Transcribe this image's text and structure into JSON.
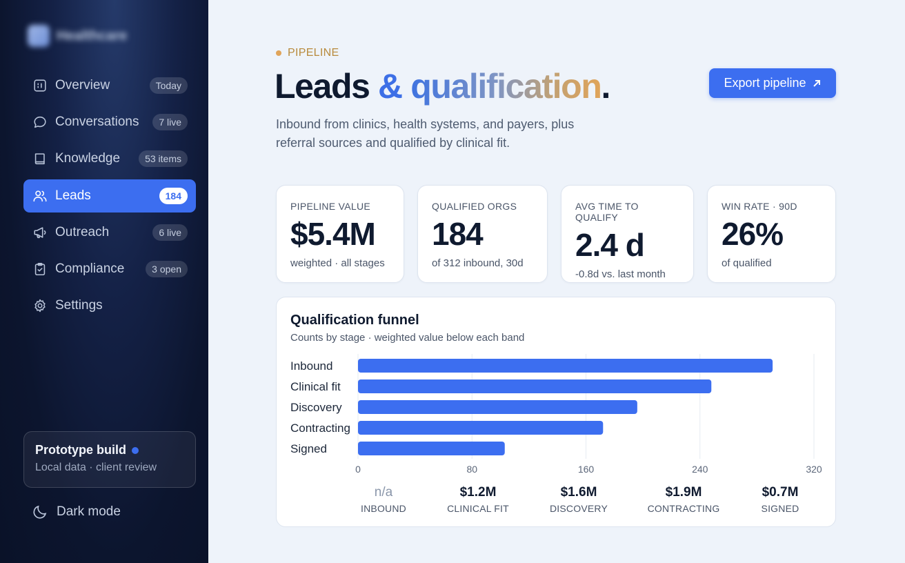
{
  "brand": {
    "name": "Healthcare"
  },
  "sidebar": {
    "items": [
      {
        "label": "Overview",
        "badge": "Today",
        "icon": "overview-icon",
        "active": false
      },
      {
        "label": "Conversations",
        "badge": "7 live",
        "icon": "chat-bubble-icon",
        "active": false
      },
      {
        "label": "Knowledge",
        "badge": "53 items",
        "icon": "book-icon",
        "active": false
      },
      {
        "label": "Leads",
        "badge": "184",
        "icon": "users-icon",
        "active": true
      },
      {
        "label": "Outreach",
        "badge": "6 live",
        "icon": "megaphone-icon",
        "active": false
      },
      {
        "label": "Compliance",
        "badge": "3 open",
        "icon": "clipboard-check-icon",
        "active": false
      },
      {
        "label": "Settings",
        "badge": "",
        "icon": "gear-icon",
        "active": false
      }
    ],
    "prototype": {
      "title": "Prototype build",
      "subtitle": "Local data · client review"
    },
    "dark_mode_label": "Dark mode"
  },
  "header": {
    "eyebrow": "PIPELINE",
    "title_part1": "Leads ",
    "title_amp": "& ",
    "title_part2": "qualification",
    "title_end": ".",
    "subtitle": "Inbound from clinics, health systems, and payers, plus referral sources and qualified by clinical fit.",
    "export_label": "Export pipeline"
  },
  "stats": [
    {
      "label": "PIPELINE VALUE",
      "value": "$5.4M",
      "sub": "weighted · all stages"
    },
    {
      "label": "QUALIFIED ORGS",
      "value": "184",
      "sub": "of 312 inbound, 30d"
    },
    {
      "label": "AVG TIME TO QUALIFY",
      "value": "2.4 d",
      "sub": "-0.8d vs. last month"
    },
    {
      "label": "WIN RATE · 90D",
      "value": "26%",
      "sub": "of qualified"
    }
  ],
  "colors": {
    "accent": "#3c6ef0",
    "eyebrow": "#b88a3c",
    "sidebar_bg": "#0c152e"
  },
  "chart_data": {
    "type": "bar",
    "orientation": "horizontal",
    "title": "Qualification funnel",
    "subtitle": "Counts by stage · weighted value below each band",
    "categories": [
      "Inbound",
      "Clinical fit",
      "Discovery",
      "Contracting",
      "Signed"
    ],
    "values": [
      291,
      248,
      196,
      172,
      103
    ],
    "xlim": [
      0,
      320
    ],
    "xticks": [
      0,
      80,
      160,
      240,
      320
    ],
    "grid": true,
    "bar_color": "#3c6ef0",
    "footer": [
      {
        "value": "n/a",
        "label": "INBOUND"
      },
      {
        "value": "$1.2M",
        "label": "CLINICAL FIT"
      },
      {
        "value": "$1.6M",
        "label": "DISCOVERY"
      },
      {
        "value": "$1.9M",
        "label": "CONTRACTING"
      },
      {
        "value": "$0.7M",
        "label": "SIGNED"
      }
    ]
  }
}
